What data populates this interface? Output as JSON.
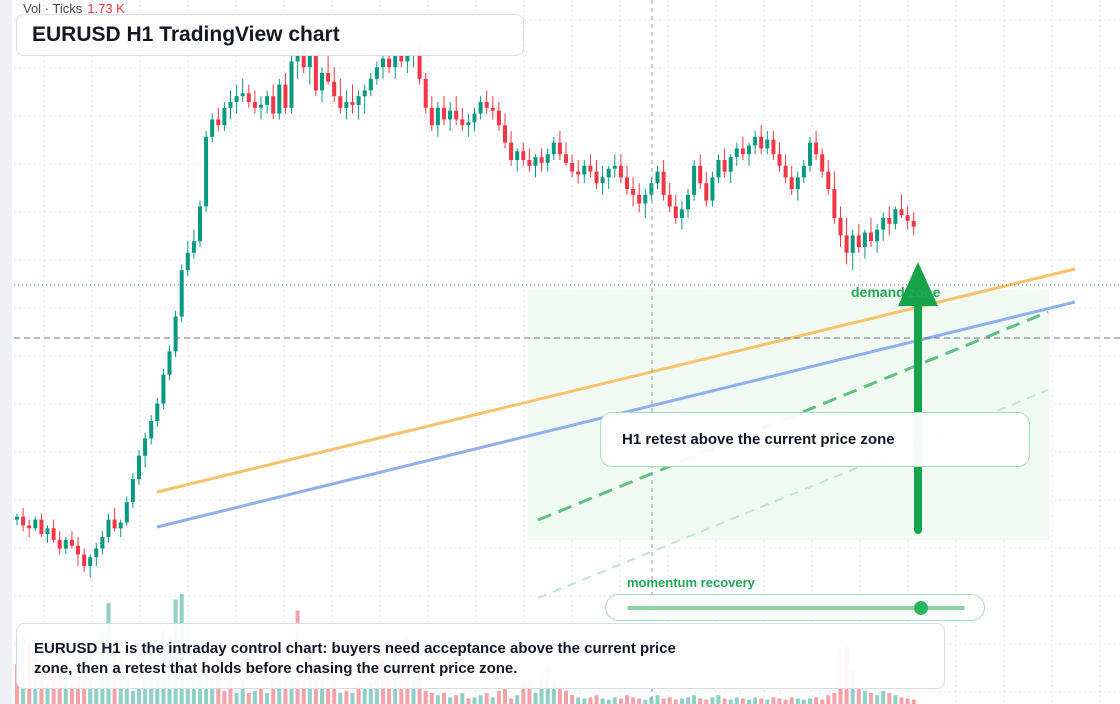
{
  "window_title": "EURUSD H1 TradingView chart",
  "volume_legend": {
    "label": "Vol · Ticks",
    "value": "1.73 K"
  },
  "annotations": {
    "zone_label": "demand zone",
    "callout": "H1 retest above the current price zone",
    "momentum_label": "momentum recovery",
    "momentum_level": 0.87,
    "note": "EURUSD H1 is the intraday control chart: buyers need acceptance above the current price zone, then a retest that holds before chasing the current price zone."
  },
  "colors": {
    "bull": "#089981",
    "bear": "#f23645",
    "bull_volume": "#8fd0c5",
    "bear_volume": "#f5a1a8",
    "grid": "#dfe3ea",
    "trendline_orange": "#f6c26b",
    "trendline_blue": "#8fb0ec",
    "accent_green": "#22a757",
    "zone_fill": "#f0faf2"
  },
  "chart_data": {
    "type": "candlestick",
    "symbol": "EURUSD",
    "timeframe": "H1",
    "price_range": [
      0,
      100
    ],
    "candles": [
      [
        18,
        19,
        17,
        18.5
      ],
      [
        18.5,
        20,
        16,
        17
      ],
      [
        17,
        18,
        15,
        16.5
      ],
      [
        16.5,
        18.5,
        16,
        18
      ],
      [
        18,
        19,
        15,
        15.5
      ],
      [
        15.5,
        17,
        14,
        16.5
      ],
      [
        16.5,
        18,
        14,
        14.5
      ],
      [
        14.5,
        16,
        12,
        13
      ],
      [
        13,
        15,
        12,
        14.5
      ],
      [
        14.5,
        16,
        13,
        13.5
      ],
      [
        13.5,
        15,
        10,
        12
      ],
      [
        12,
        13,
        9,
        10
      ],
      [
        10,
        12,
        8,
        11.5
      ],
      [
        11.5,
        14,
        10,
        13
      ],
      [
        13,
        16,
        12,
        15
      ],
      [
        15,
        19,
        14,
        18
      ],
      [
        18,
        20,
        16,
        16.5
      ],
      [
        16.5,
        18,
        15,
        17.5
      ],
      [
        17.5,
        22,
        17,
        21
      ],
      [
        21,
        26,
        20,
        25
      ],
      [
        25,
        30,
        24,
        29
      ],
      [
        29,
        33,
        27,
        32
      ],
      [
        32,
        36,
        31,
        35
      ],
      [
        35,
        39,
        34,
        38
      ],
      [
        38,
        44,
        37,
        43
      ],
      [
        43,
        48,
        42,
        47
      ],
      [
        47,
        54,
        46,
        53
      ],
      [
        53,
        62,
        52,
        61
      ],
      [
        61,
        66,
        60,
        64
      ],
      [
        64,
        68,
        63,
        66
      ],
      [
        66,
        73,
        65,
        72
      ],
      [
        72,
        85,
        71,
        84
      ],
      [
        84,
        88,
        83,
        87
      ],
      [
        87,
        89,
        85,
        86
      ],
      [
        86,
        90,
        85,
        89
      ],
      [
        89,
        92,
        87,
        90
      ],
      [
        90,
        93,
        88,
        91
      ],
      [
        91,
        94,
        90,
        91.5
      ],
      [
        91.5,
        93,
        89,
        90
      ],
      [
        90,
        92,
        88,
        89
      ],
      [
        89,
        91,
        87,
        89.5
      ],
      [
        89.5,
        92,
        88,
        91
      ],
      [
        91,
        93,
        87,
        88
      ],
      [
        88,
        94,
        87,
        93
      ],
      [
        93,
        95,
        88,
        89
      ],
      [
        89,
        98,
        88,
        97
      ],
      [
        97,
        100,
        94,
        99
      ],
      [
        99,
        101,
        95,
        96
      ],
      [
        96,
        99,
        93,
        98
      ],
      [
        98,
        99,
        91,
        92
      ],
      [
        92,
        96,
        90,
        95
      ],
      [
        95,
        98,
        93,
        93.5
      ],
      [
        93.5,
        96,
        90,
        91
      ],
      [
        91,
        94,
        88,
        89
      ],
      [
        89,
        92,
        87,
        90
      ],
      [
        90,
        93,
        88,
        89.5
      ],
      [
        89.5,
        92,
        87,
        91
      ],
      [
        91,
        93,
        88,
        92
      ],
      [
        92,
        95,
        91,
        94
      ],
      [
        94,
        97,
        93,
        96
      ],
      [
        96,
        98,
        94,
        97.5
      ],
      [
        97.5,
        99,
        95,
        96
      ],
      [
        96,
        99,
        94,
        98
      ],
      [
        98,
        99.5,
        96,
        97
      ],
      [
        97,
        99,
        95,
        98.5
      ],
      [
        98.5,
        100,
        96,
        99
      ],
      [
        99,
        100,
        93,
        94
      ],
      [
        94,
        95,
        88,
        89
      ],
      [
        89,
        91,
        85,
        86
      ],
      [
        86,
        90,
        84,
        89
      ],
      [
        89,
        91,
        86,
        87
      ],
      [
        87,
        90,
        85,
        88.5
      ],
      [
        88.5,
        91,
        86,
        87
      ],
      [
        87,
        89,
        85,
        86
      ],
      [
        86,
        88,
        84,
        86.5
      ],
      [
        86.5,
        89,
        85,
        88
      ],
      [
        88,
        91,
        87,
        90
      ],
      [
        90,
        92,
        88,
        89
      ],
      [
        89,
        91,
        87,
        88.5
      ],
      [
        88.5,
        90,
        85,
        86
      ],
      [
        86,
        88,
        82,
        83
      ],
      [
        83,
        85,
        79,
        80
      ],
      [
        80,
        82,
        78,
        81.5
      ],
      [
        81.5,
        83,
        79,
        80
      ],
      [
        80,
        82,
        78,
        79
      ],
      [
        79,
        81,
        77,
        80.5
      ],
      [
        80.5,
        82,
        78,
        79.5
      ],
      [
        79.5,
        82,
        78,
        81
      ],
      [
        81,
        84,
        80,
        83
      ],
      [
        83,
        85,
        80,
        81
      ],
      [
        81,
        83,
        79,
        79.5
      ],
      [
        79.5,
        81,
        77,
        78
      ],
      [
        78,
        80,
        76,
        77.5
      ],
      [
        77.5,
        80,
        76,
        79
      ],
      [
        79,
        81,
        77,
        78
      ],
      [
        78,
        80,
        75,
        76
      ],
      [
        76,
        79,
        74,
        77
      ],
      [
        77,
        79,
        75,
        78.5
      ],
      [
        78.5,
        81,
        77,
        79
      ],
      [
        79,
        81,
        76,
        77
      ],
      [
        77,
        79,
        74,
        75
      ],
      [
        75,
        77,
        72,
        74
      ],
      [
        74,
        76,
        71,
        72.5
      ],
      [
        72.5,
        75,
        70,
        74
      ],
      [
        74,
        77,
        73,
        76
      ],
      [
        76,
        79,
        75,
        78
      ],
      [
        78,
        80,
        73,
        74
      ],
      [
        74,
        76,
        71,
        72
      ],
      [
        72,
        74,
        69,
        70
      ],
      [
        70,
        73,
        68,
        71.5
      ],
      [
        71.5,
        75,
        70,
        74
      ],
      [
        74,
        80,
        73,
        79
      ],
      [
        79,
        81,
        75,
        76
      ],
      [
        76,
        78,
        72,
        73
      ],
      [
        73,
        78,
        72,
        77
      ],
      [
        77,
        81,
        76,
        80
      ],
      [
        80,
        82,
        77,
        78
      ],
      [
        78,
        81,
        76,
        80.5
      ],
      [
        80.5,
        83,
        79,
        82
      ],
      [
        82,
        84,
        80,
        81
      ],
      [
        81,
        83,
        79,
        82.5
      ],
      [
        82.5,
        85,
        81,
        84
      ],
      [
        84,
        86,
        81,
        82
      ],
      [
        82,
        85,
        81,
        83.5
      ],
      [
        83.5,
        85,
        80,
        81
      ],
      [
        81,
        83,
        78,
        79
      ],
      [
        79,
        81,
        76,
        77
      ],
      [
        77,
        79,
        74,
        75
      ],
      [
        75,
        78,
        73,
        77
      ],
      [
        77,
        80,
        76,
        79
      ],
      [
        79,
        84,
        78,
        83
      ],
      [
        83,
        85,
        80,
        81
      ],
      [
        81,
        82,
        77,
        78
      ],
      [
        78,
        80,
        74,
        75
      ],
      [
        75,
        78,
        69,
        70
      ],
      [
        70,
        72,
        65,
        67
      ],
      [
        67,
        70,
        62,
        64
      ],
      [
        64,
        68,
        61,
        67
      ],
      [
        67,
        69,
        64,
        65
      ],
      [
        65,
        68,
        63,
        67.5
      ],
      [
        67.5,
        70,
        65,
        66
      ],
      [
        66,
        69,
        64,
        68
      ],
      [
        68,
        71,
        66,
        70
      ],
      [
        70,
        72,
        67,
        69
      ],
      [
        69,
        72,
        68,
        71.5
      ],
      [
        71.5,
        74,
        70,
        70.5
      ],
      [
        70.5,
        72,
        68,
        69.5
      ],
      [
        69.5,
        71,
        67,
        68.5
      ]
    ],
    "volumes": [
      [
        0.36,
        "down"
      ],
      [
        0.62,
        "up"
      ],
      [
        0.55,
        "down"
      ],
      [
        0.42,
        "up"
      ],
      [
        0.38,
        "down"
      ],
      [
        0.2,
        "up"
      ],
      [
        0.35,
        "down"
      ],
      [
        0.52,
        "down"
      ],
      [
        0.4,
        "up"
      ],
      [
        0.18,
        "down"
      ],
      [
        0.23,
        "down"
      ],
      [
        0.28,
        "down"
      ],
      [
        0.46,
        "up"
      ],
      [
        0.15,
        "up"
      ],
      [
        0.7,
        "up"
      ],
      [
        0.92,
        "up"
      ],
      [
        0.55,
        "down"
      ],
      [
        0.44,
        "up"
      ],
      [
        0.25,
        "up"
      ],
      [
        0.12,
        "up"
      ],
      [
        0.15,
        "up"
      ],
      [
        0.3,
        "up"
      ],
      [
        0.55,
        "up"
      ],
      [
        0.4,
        "up"
      ],
      [
        0.68,
        "up"
      ],
      [
        0.62,
        "up"
      ],
      [
        0.95,
        "up"
      ],
      [
        1.0,
        "up"
      ],
      [
        0.72,
        "up"
      ],
      [
        0.25,
        "up"
      ],
      [
        0.33,
        "up"
      ],
      [
        0.22,
        "up"
      ],
      [
        0.35,
        "up"
      ],
      [
        0.55,
        "down"
      ],
      [
        0.12,
        "down"
      ],
      [
        0.3,
        "down"
      ],
      [
        0.1,
        "up"
      ],
      [
        0.22,
        "up"
      ],
      [
        0.1,
        "down"
      ],
      [
        0.12,
        "up"
      ],
      [
        0.18,
        "down"
      ],
      [
        0.1,
        "up"
      ],
      [
        0.25,
        "down"
      ],
      [
        0.45,
        "up"
      ],
      [
        0.2,
        "down"
      ],
      [
        0.35,
        "up"
      ],
      [
        0.85,
        "down"
      ],
      [
        0.6,
        "down"
      ],
      [
        0.4,
        "up"
      ],
      [
        0.3,
        "down"
      ],
      [
        0.22,
        "up"
      ],
      [
        0.15,
        "down"
      ],
      [
        0.2,
        "down"
      ],
      [
        0.1,
        "up"
      ],
      [
        0.12,
        "down"
      ],
      [
        0.1,
        "up"
      ],
      [
        0.18,
        "down"
      ],
      [
        0.15,
        "up"
      ],
      [
        0.2,
        "up"
      ],
      [
        0.35,
        "up"
      ],
      [
        0.4,
        "down"
      ],
      [
        0.25,
        "down"
      ],
      [
        0.45,
        "up"
      ],
      [
        0.3,
        "down"
      ],
      [
        0.6,
        "down"
      ],
      [
        0.5,
        "up"
      ],
      [
        0.35,
        "down"
      ],
      [
        0.12,
        "down"
      ],
      [
        0.1,
        "down"
      ],
      [
        0.08,
        "up"
      ],
      [
        0.1,
        "down"
      ],
      [
        0.06,
        "up"
      ],
      [
        0.08,
        "down"
      ],
      [
        0.1,
        "up"
      ],
      [
        0.05,
        "down"
      ],
      [
        0.06,
        "up"
      ],
      [
        0.08,
        "up"
      ],
      [
        0.1,
        "down"
      ],
      [
        0.06,
        "up"
      ],
      [
        0.12,
        "down"
      ],
      [
        0.15,
        "down"
      ],
      [
        0.05,
        "down"
      ],
      [
        0.08,
        "up"
      ],
      [
        0.2,
        "down"
      ],
      [
        0.22,
        "down"
      ],
      [
        0.1,
        "up"
      ],
      [
        0.25,
        "up"
      ],
      [
        0.35,
        "up"
      ],
      [
        0.2,
        "up"
      ],
      [
        0.15,
        "down"
      ],
      [
        0.12,
        "down"
      ],
      [
        0.08,
        "down"
      ],
      [
        0.06,
        "up"
      ],
      [
        0.05,
        "up"
      ],
      [
        0.06,
        "down"
      ],
      [
        0.08,
        "down"
      ],
      [
        0.05,
        "up"
      ],
      [
        0.04,
        "up"
      ],
      [
        0.06,
        "up"
      ],
      [
        0.05,
        "down"
      ],
      [
        0.08,
        "down"
      ],
      [
        0.06,
        "down"
      ],
      [
        0.05,
        "down"
      ],
      [
        0.04,
        "up"
      ],
      [
        0.06,
        "up"
      ],
      [
        0.08,
        "up"
      ],
      [
        0.05,
        "down"
      ],
      [
        0.06,
        "down"
      ],
      [
        0.04,
        "down"
      ],
      [
        0.05,
        "up"
      ],
      [
        0.06,
        "up"
      ],
      [
        0.08,
        "up"
      ],
      [
        0.05,
        "down"
      ],
      [
        0.04,
        "down"
      ],
      [
        0.06,
        "up"
      ],
      [
        0.08,
        "up"
      ],
      [
        0.05,
        "down"
      ],
      [
        0.04,
        "up"
      ],
      [
        0.06,
        "up"
      ],
      [
        0.05,
        "down"
      ],
      [
        0.04,
        "up"
      ],
      [
        0.06,
        "up"
      ],
      [
        0.05,
        "down"
      ],
      [
        0.04,
        "up"
      ],
      [
        0.06,
        "down"
      ],
      [
        0.05,
        "down"
      ],
      [
        0.04,
        "down"
      ],
      [
        0.06,
        "down"
      ],
      [
        0.05,
        "up"
      ],
      [
        0.04,
        "up"
      ],
      [
        0.05,
        "up"
      ],
      [
        0.06,
        "down"
      ],
      [
        0.04,
        "down"
      ],
      [
        0.08,
        "down"
      ],
      [
        0.1,
        "down"
      ],
      [
        0.5,
        "down"
      ],
      [
        0.52,
        "down"
      ],
      [
        0.3,
        "up"
      ],
      [
        0.15,
        "down"
      ],
      [
        0.12,
        "up"
      ],
      [
        0.1,
        "down"
      ],
      [
        0.08,
        "up"
      ],
      [
        0.12,
        "up"
      ],
      [
        0.1,
        "down"
      ],
      [
        0.08,
        "up"
      ],
      [
        0.06,
        "down"
      ],
      [
        0.05,
        "down"
      ],
      [
        0.04,
        "down"
      ]
    ]
  }
}
